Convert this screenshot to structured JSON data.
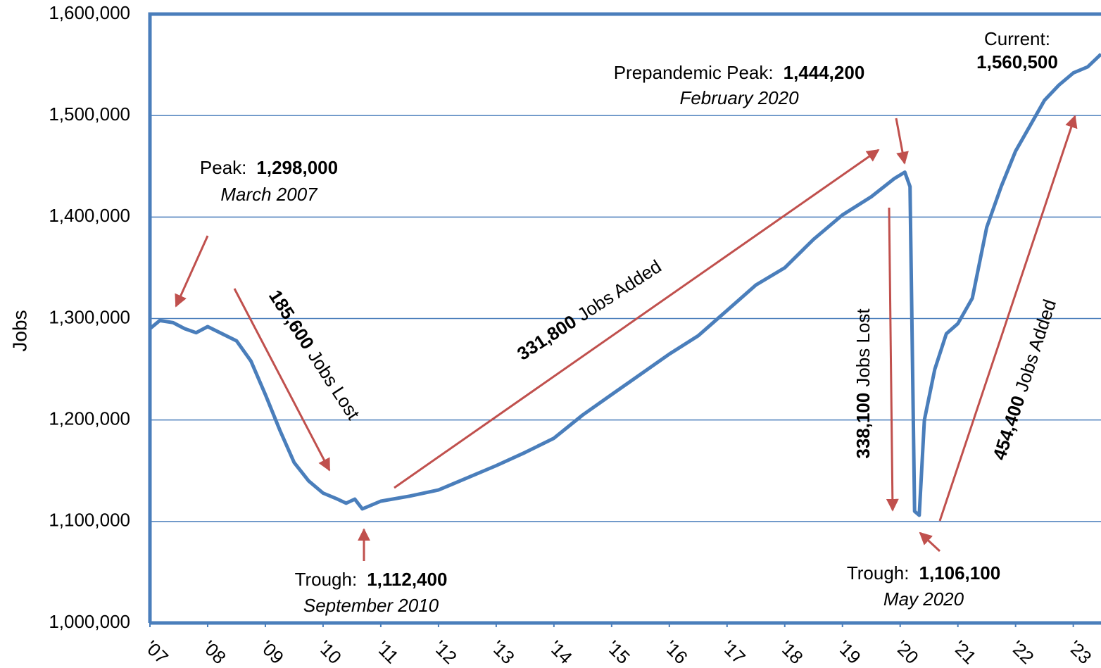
{
  "chart_data": {
    "type": "line",
    "ylabel": "Jobs",
    "x": [
      2007.0,
      2007.17,
      2007.4,
      2007.6,
      2007.8,
      2008.0,
      2008.25,
      2008.5,
      2008.75,
      2009.0,
      2009.25,
      2009.5,
      2009.75,
      2010.0,
      2010.25,
      2010.4,
      2010.55,
      2010.68,
      2011.0,
      2011.5,
      2012.0,
      2012.5,
      2013.0,
      2013.5,
      2014.0,
      2014.5,
      2015.0,
      2015.5,
      2016.0,
      2016.5,
      2017.0,
      2017.5,
      2018.0,
      2018.5,
      2019.0,
      2019.5,
      2019.9,
      2020.08,
      2020.17,
      2020.25,
      2020.33,
      2020.42,
      2020.6,
      2020.8,
      2021.0,
      2021.25,
      2021.5,
      2021.75,
      2022.0,
      2022.25,
      2022.5,
      2022.75,
      2023.0,
      2023.25,
      2023.48
    ],
    "series": [
      {
        "name": "Jobs",
        "color": "#4a7ebb",
        "values": [
          1290000,
          1298000,
          1296000,
          1290000,
          1286000,
          1292000,
          1285000,
          1278000,
          1258000,
          1225000,
          1190000,
          1158000,
          1140000,
          1128000,
          1122000,
          1118000,
          1122000,
          1112400,
          1120000,
          1125000,
          1131000,
          1143000,
          1155000,
          1168000,
          1182000,
          1205000,
          1225000,
          1245000,
          1265000,
          1283000,
          1308000,
          1333000,
          1350000,
          1378000,
          1402000,
          1420000,
          1438000,
          1444200,
          1430000,
          1110000,
          1106100,
          1200000,
          1250000,
          1285000,
          1295000,
          1320000,
          1390000,
          1430000,
          1465000,
          1490000,
          1515000,
          1530000,
          1542000,
          1548000,
          1560500
        ]
      }
    ],
    "xlim": [
      2007,
      2023.48
    ],
    "xticks": [
      {
        "value": 2007,
        "label": "'07"
      },
      {
        "value": 2008,
        "label": "'08"
      },
      {
        "value": 2009,
        "label": "'09"
      },
      {
        "value": 2010,
        "label": "'10"
      },
      {
        "value": 2011,
        "label": "'11"
      },
      {
        "value": 2012,
        "label": "'12"
      },
      {
        "value": 2013,
        "label": "'13"
      },
      {
        "value": 2014,
        "label": "'14"
      },
      {
        "value": 2015,
        "label": "'15"
      },
      {
        "value": 2016,
        "label": "'16"
      },
      {
        "value": 2017,
        "label": "'17"
      },
      {
        "value": 2018,
        "label": "'18"
      },
      {
        "value": 2019,
        "label": "'19"
      },
      {
        "value": 2020,
        "label": "'20"
      },
      {
        "value": 2021,
        "label": "'21"
      },
      {
        "value": 2022,
        "label": "'22"
      },
      {
        "value": 2023,
        "label": "'23"
      }
    ],
    "ylim": [
      1000000,
      1600000
    ],
    "yticks": [
      {
        "value": 1000000,
        "label": "1,000,000"
      },
      {
        "value": 1100000,
        "label": "1,100,000"
      },
      {
        "value": 1200000,
        "label": "1,200,000"
      },
      {
        "value": 1300000,
        "label": "1,300,000"
      },
      {
        "value": 1400000,
        "label": "1,400,000"
      },
      {
        "value": 1500000,
        "label": "1,500,000"
      },
      {
        "value": 1600000,
        "label": "1,600,000"
      }
    ],
    "grid": true,
    "annotations": [
      {
        "label": "Peak:",
        "value": "1,298,000",
        "date": "March 2007"
      },
      {
        "label": "Trough:",
        "value": "1,112,400",
        "date": "September 2010"
      },
      {
        "label": "Prepandemic Peak:",
        "value": "1,444,200",
        "date": "February 2020"
      },
      {
        "label": "Trough:",
        "value": "1,106,100",
        "date": "May 2020"
      },
      {
        "label": "Current:",
        "value": "1,560,500"
      },
      {
        "value": "185,600",
        "label": "Jobs Lost"
      },
      {
        "value": "331,800",
        "label": "Jobs Added"
      },
      {
        "value": "338,100",
        "label": "Jobs Lost"
      },
      {
        "value": "454,400",
        "label": "Jobs Added"
      }
    ]
  }
}
